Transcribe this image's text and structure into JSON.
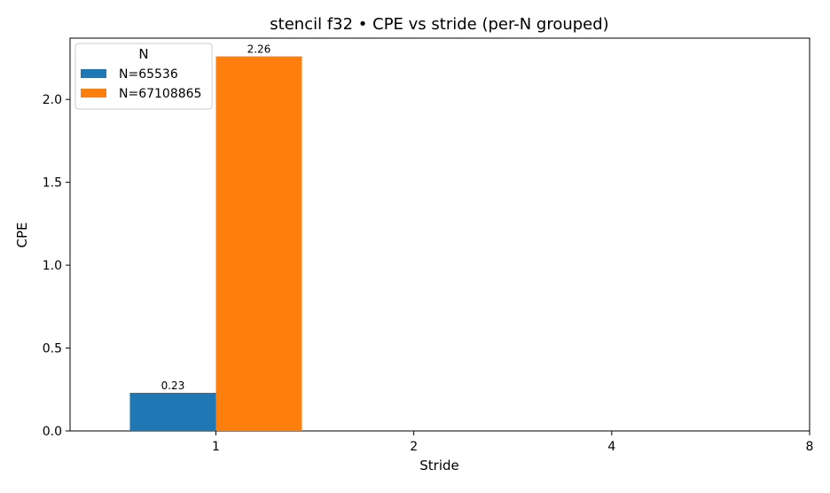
{
  "chart_data": {
    "type": "bar",
    "title": "stencil f32 • CPE vs stride (per-N grouped)",
    "xlabel": "Stride",
    "ylabel": "CPE",
    "categories": [
      "1",
      "2",
      "4",
      "8"
    ],
    "x": [
      1,
      2,
      4,
      8
    ],
    "xlim": [
      0.6,
      8
    ],
    "ylim": [
      0,
      2.37
    ],
    "yticks": [
      "0.0",
      "0.5",
      "1.0",
      "1.5",
      "2.0"
    ],
    "ytick_values": [
      0,
      0.5,
      1,
      1.5,
      2
    ],
    "grid": false,
    "legend": {
      "title": "N",
      "placement": "top-left"
    },
    "series": [
      {
        "name": "N=65536",
        "color": "#1f77b4",
        "points": [
          {
            "x": 1,
            "y": 0.23,
            "label": "0.23"
          }
        ]
      },
      {
        "name": "N=67108865",
        "color": "#ff7f0e",
        "points": [
          {
            "x": 1,
            "y": 2.26,
            "label": "2.26"
          }
        ]
      }
    ]
  }
}
